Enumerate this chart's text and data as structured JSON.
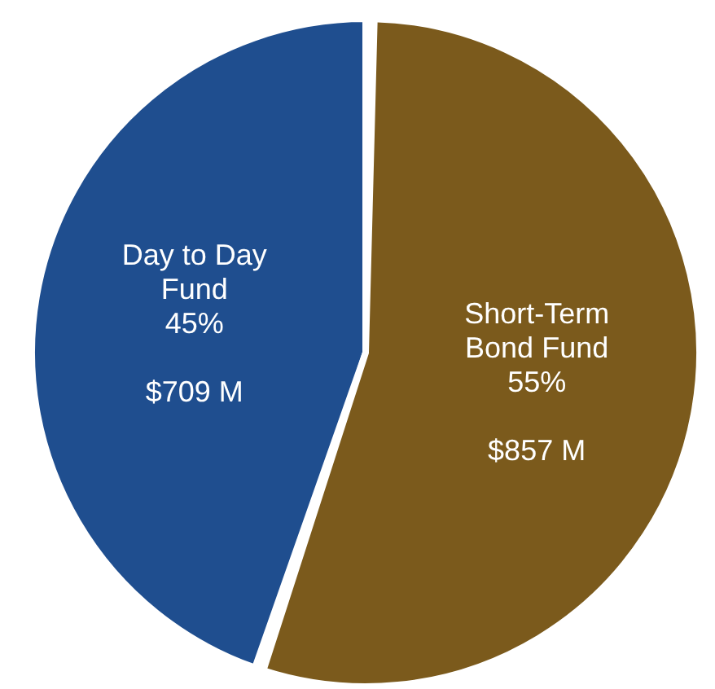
{
  "chart_data": {
    "type": "pie",
    "categories": [
      "Day to Day Fund",
      "Short-Term Bond Fund"
    ],
    "values": [
      45,
      55
    ],
    "colors": [
      "#1f4e8f",
      "#7b5a1c"
    ],
    "value_labels": [
      "45%",
      "55%"
    ],
    "annotations": [
      "$709 M",
      "$857 M"
    ]
  }
}
